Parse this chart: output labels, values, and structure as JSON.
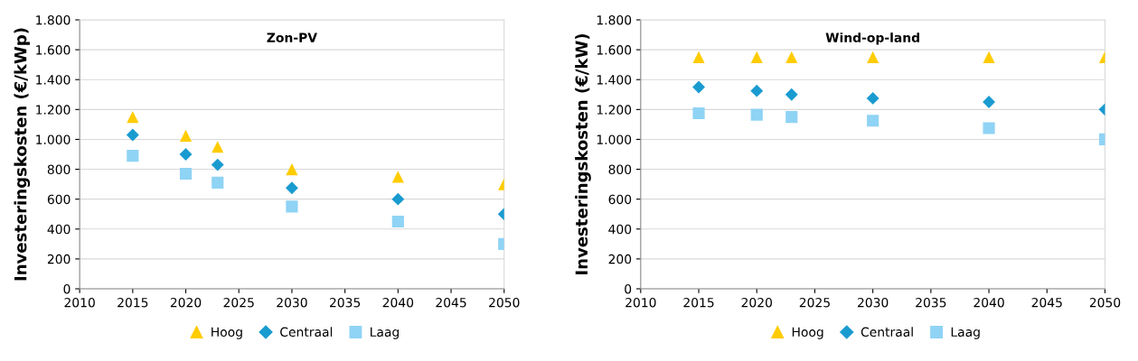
{
  "chart_data": [
    {
      "type": "scatter",
      "title": "Zon-PV",
      "ylabel": "Investeringskosten (€/kWp)",
      "x": [
        2015,
        2020,
        2023,
        2030,
        2040,
        2050
      ],
      "xlim": [
        2010,
        2050
      ],
      "xticks": [
        2010,
        2015,
        2020,
        2025,
        2030,
        2035,
        2040,
        2045,
        2050
      ],
      "ylim": [
        0,
        1800
      ],
      "yticks": [
        0,
        200,
        400,
        600,
        800,
        {
          "value": 1000,
          "label": "1.000"
        },
        {
          "value": 1200,
          "label": "1.200"
        },
        {
          "value": 1400,
          "label": "1.400"
        },
        {
          "value": 1600,
          "label": "1.600"
        },
        {
          "value": 1800,
          "label": "1.800"
        }
      ],
      "grid": "y",
      "legend": "bottom",
      "series": [
        {
          "name": "Hoog",
          "color": "#ffcc00",
          "marker": "triangle",
          "values": [
            1150,
            1025,
            950,
            800,
            750,
            700
          ]
        },
        {
          "name": "Centraal",
          "color": "#1a9bd0",
          "marker": "diamond",
          "values": [
            1030,
            900,
            830,
            675,
            600,
            500
          ]
        },
        {
          "name": "Laag",
          "color": "#8fd3f5",
          "marker": "square",
          "values": [
            890,
            770,
            710,
            550,
            450,
            300
          ]
        }
      ]
    },
    {
      "type": "scatter",
      "title": "Wind-op-land",
      "ylabel": "Investeringskosten (€/kW)",
      "x": [
        2015,
        2020,
        2023,
        2030,
        2040,
        2050
      ],
      "xlim": [
        2010,
        2050
      ],
      "xticks": [
        2010,
        2015,
        2020,
        2025,
        2030,
        2035,
        2040,
        2045,
        2050
      ],
      "ylim": [
        0,
        1800
      ],
      "yticks": [
        0,
        200,
        400,
        600,
        800,
        {
          "value": 1000,
          "label": "1.000"
        },
        {
          "value": 1200,
          "label": "1.200"
        },
        {
          "value": 1400,
          "label": "1.400"
        },
        {
          "value": 1600,
          "label": "1.600"
        },
        {
          "value": 1800,
          "label": "1.800"
        }
      ],
      "grid": "y",
      "legend": "bottom",
      "series": [
        {
          "name": "Hoog",
          "color": "#ffcc00",
          "marker": "triangle",
          "values": [
            1550,
            1550,
            1550,
            1550,
            1550,
            1550
          ]
        },
        {
          "name": "Centraal",
          "color": "#1a9bd0",
          "marker": "diamond",
          "values": [
            1350,
            1325,
            1300,
            1275,
            1250,
            1200
          ]
        },
        {
          "name": "Laag",
          "color": "#8fd3f5",
          "marker": "square",
          "values": [
            1175,
            1165,
            1150,
            1125,
            1075,
            1000
          ]
        }
      ]
    }
  ]
}
